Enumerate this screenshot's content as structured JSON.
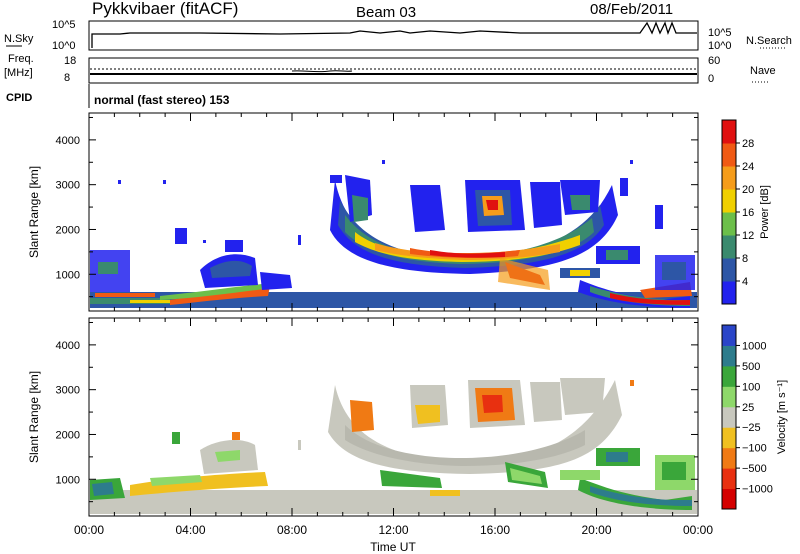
{
  "header": {
    "station": "Pykkvibaer (fitACF)",
    "beam": "Beam 03",
    "date": "08/Feb/2011"
  },
  "nsky_panel": {
    "left_label": "N.Sky",
    "right_label": "N.Search",
    "left_ticks": [
      "10^5",
      "10^0"
    ],
    "right_ticks": [
      "10^5",
      "10^0"
    ]
  },
  "freq_panel": {
    "left_label_1": "Freq.",
    "left_label_2": "[MHz]",
    "right_label": "Nave",
    "left_ticks": [
      "18",
      "8"
    ],
    "right_ticks": [
      "60",
      "0"
    ]
  },
  "cpid_panel": {
    "label": "CPID",
    "text": "normal (fast stereo) 153"
  },
  "chart_data": [
    {
      "type": "heatmap",
      "panel": "power",
      "ylabel": "Slant Range [km]",
      "ylim": [
        180,
        4600
      ],
      "y_ticks": [
        "1000",
        "2000",
        "3000",
        "4000"
      ],
      "y_tick_values": [
        1000,
        2000,
        3000,
        4000
      ],
      "x_ticks": [
        "00:00",
        "04:00",
        "08:00",
        "12:00",
        "16:00",
        "20:00",
        "00:00"
      ],
      "x_tick_hours": [
        0,
        4,
        8,
        12,
        16,
        20,
        24
      ],
      "colorbar_label": "Power [dB]",
      "colorbar_ticks": [
        "4",
        "8",
        "12",
        "16",
        "20",
        "24",
        "28"
      ],
      "colorbar_colors": [
        "#2222ee",
        "#2d56a6",
        "#3a8a6e",
        "#6cbf4a",
        "#f0d000",
        "#f59c1a",
        "#f05a14",
        "#e01010"
      ]
    },
    {
      "type": "heatmap",
      "panel": "velocity",
      "ylabel": "Slant Range [km]",
      "ylim": [
        180,
        4600
      ],
      "y_ticks": [
        "1000",
        "2000",
        "3000",
        "4000"
      ],
      "y_tick_values": [
        1000,
        2000,
        3000,
        4000
      ],
      "x_ticks": [
        "00:00",
        "04:00",
        "08:00",
        "12:00",
        "16:00",
        "20:00",
        "00:00"
      ],
      "x_tick_hours": [
        0,
        4,
        8,
        12,
        16,
        20,
        24
      ],
      "xlabel": "Time UT",
      "colorbar_label": "Velocity  [m s⁻¹]",
      "colorbar_ticks": [
        "1000",
        "500",
        "100",
        "25",
        "−25",
        "−100",
        "−500",
        "−1000"
      ],
      "colorbar_colors": [
        "#2a45c8",
        "#2d7c8c",
        "#3aa63a",
        "#8ed86a",
        "#c8c8be",
        "#f0c020",
        "#f07a14",
        "#e83010",
        "#d40000"
      ]
    }
  ],
  "colors": {
    "blue": "#2222ee",
    "dark_blue": "#2d56a6",
    "teal": "#3a8a6e",
    "green": "#6cbf4a",
    "yellow": "#f0d000",
    "orange": "#f59c1a",
    "red_orange": "#f05a14",
    "red": "#e01010",
    "grey": "#c8c8be"
  }
}
